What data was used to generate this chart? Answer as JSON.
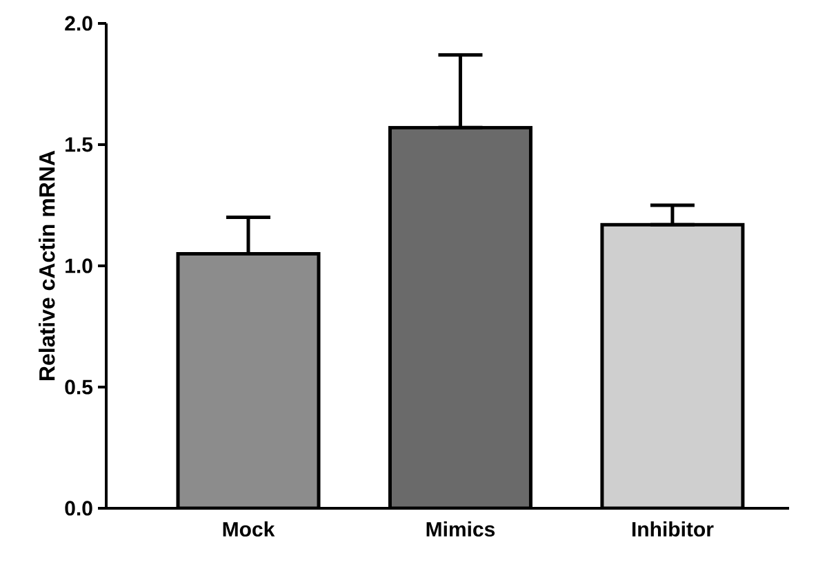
{
  "chart_data": {
    "type": "bar",
    "ylabel": "Relative cActin mRNA",
    "categories": [
      "Mock",
      "Mimics",
      "Inhibitor"
    ],
    "values": [
      1.05,
      1.57,
      1.17
    ],
    "errors": [
      [
        1.05,
        1.2
      ],
      [
        1.57,
        1.87
      ],
      [
        1.17,
        1.25
      ]
    ],
    "colors": [
      "#8c8c8c",
      "#6a6a6a",
      "#cfcfcf"
    ],
    "ylim": [
      0,
      2.0
    ],
    "yticks": [
      {
        "value": 0,
        "label": "0.0"
      },
      {
        "value": 0.5,
        "label": "0.5"
      },
      {
        "value": 1.0,
        "label": "1.0"
      },
      {
        "value": 1.5,
        "label": "1.5"
      },
      {
        "value": 2.0,
        "label": "2.0"
      }
    ]
  }
}
